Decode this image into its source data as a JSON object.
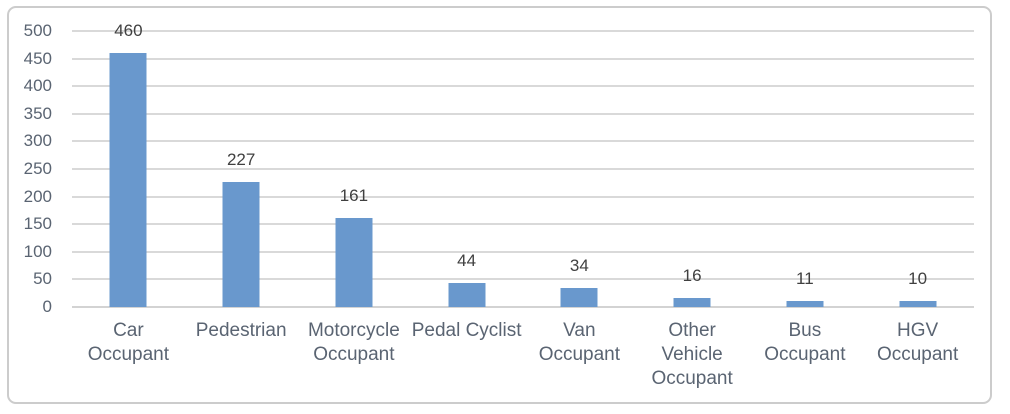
{
  "chart_data": {
    "type": "bar",
    "title": "",
    "xlabel": "",
    "ylabel": "",
    "categories": [
      "Car Occupant",
      "Pedestrian",
      "Motorcycle Occupant",
      "Pedal Cyclist",
      "Van Occupant",
      "Other Vehicle Occupant",
      "Bus Occupant",
      "HGV Occupant"
    ],
    "category_lines": [
      [
        "Car",
        "Occupant"
      ],
      [
        "Pedestrian"
      ],
      [
        "Motorcycle",
        "Occupant"
      ],
      [
        "Pedal Cyclist"
      ],
      [
        "Van",
        "Occupant"
      ],
      [
        "Other",
        "Vehicle",
        "Occupant"
      ],
      [
        "Bus",
        "Occupant"
      ],
      [
        "HGV",
        "Occupant"
      ]
    ],
    "values": [
      460,
      227,
      161,
      44,
      34,
      16,
      11,
      10
    ],
    "data_labels": [
      "460",
      "227",
      "161",
      "44",
      "34",
      "16",
      "11",
      "10"
    ],
    "y_ticks": [
      500,
      450,
      400,
      350,
      300,
      250,
      200,
      150,
      100,
      50,
      0
    ],
    "ylim": [
      0,
      500
    ],
    "grid": "horizontal",
    "legend": "none",
    "colors": {
      "bar": "#6998cd",
      "gridline": "#d9d9d9",
      "axis_line": "#d3d3d3",
      "tick_label": "#5a6472",
      "category_label": "#5a6472",
      "data_label": "#404040",
      "frame_border": "#cccccc",
      "background": "#ffffff"
    }
  }
}
